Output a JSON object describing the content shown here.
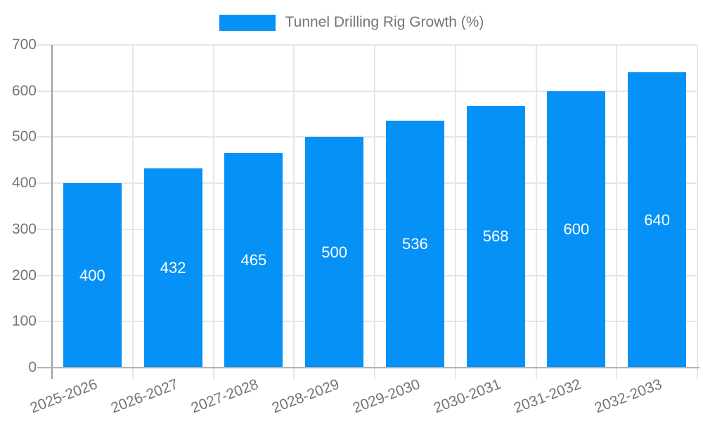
{
  "legend": {
    "label": "Tunnel Drilling Rig Growth (%)"
  },
  "chart_data": {
    "type": "bar",
    "title": "Tunnel Drilling Rig Growth (%)",
    "categories": [
      "2025-2026",
      "2026-2027",
      "2027-2028",
      "2028-2029",
      "2029-2030",
      "2030-2031",
      "2031-2032",
      "2032-2033"
    ],
    "values": [
      400,
      432,
      465,
      500,
      536,
      568,
      600,
      640
    ],
    "xlabel": "",
    "ylabel": "",
    "ylim": [
      0,
      700
    ],
    "yticks": [
      0,
      100,
      200,
      300,
      400,
      500,
      600,
      700
    ],
    "grid": true,
    "legend_position": "top-center",
    "value_labels": "inside-center",
    "bar_color": "#0591f5",
    "value_label_color": "#ffffff",
    "axis_text_color": "#757575",
    "gridline_color": "#e6e6e6",
    "y_axis_line_color": "#9e9e9e",
    "x_axis_line_color": "#b3b3b3"
  }
}
